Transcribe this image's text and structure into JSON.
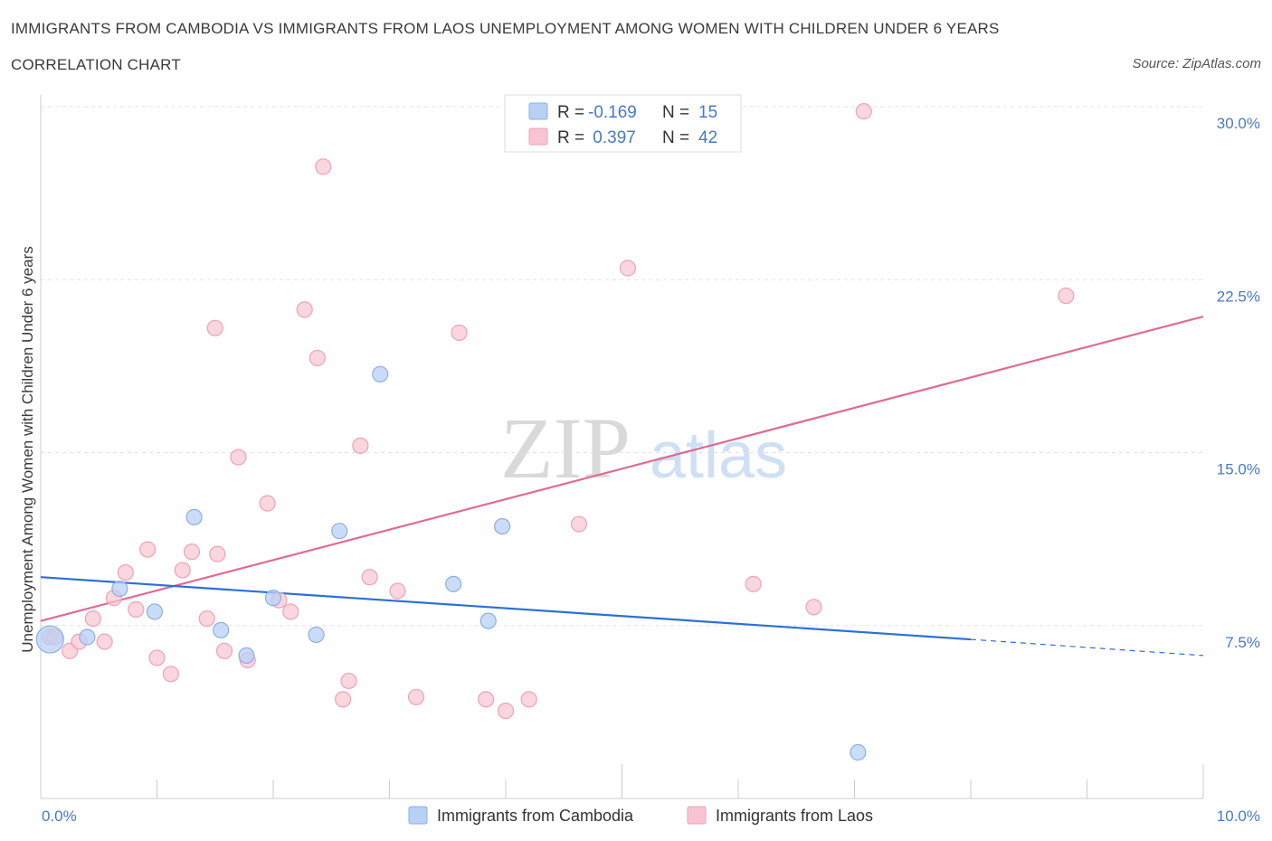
{
  "header": {
    "title": "IMMIGRANTS FROM CAMBODIA VS IMMIGRANTS FROM LAOS UNEMPLOYMENT AMONG WOMEN WITH CHILDREN UNDER 6 YEARS",
    "subtitle": "CORRELATION CHART",
    "source": "Source: ZipAtlas.com"
  },
  "colors": {
    "cambodia_fill": "#b8d0f4",
    "cambodia_stroke": "#8ab0e6",
    "cambodia_line": "#2d6fd6",
    "laos_fill": "#f8c4d2",
    "laos_stroke": "#eea2b8",
    "laos_line": "#e06a94",
    "tick_text": "#4a78c8"
  },
  "legend": {
    "rows": [
      {
        "r_label": "R =",
        "r_value": "-0.169",
        "n_label": "N =",
        "n_value": "15"
      },
      {
        "r_label": "R =",
        "r_value": " 0.397",
        "n_label": "N =",
        "n_value": "42"
      }
    ]
  },
  "watermark": {
    "zip": "ZIP",
    "atlas": "atlas"
  },
  "chart_data": {
    "type": "scatter",
    "title": "IMMIGRANTS FROM CAMBODIA VS IMMIGRANTS FROM LAOS UNEMPLOYMENT AMONG WOMEN WITH CHILDREN UNDER 6 YEARS",
    "subtitle": "CORRELATION CHART",
    "xlabel": "",
    "ylabel": "Unemployment Among Women with Children Under 6 years",
    "xlim": [
      0,
      10
    ],
    "ylim": [
      0,
      30
    ],
    "x_tick_labels": [
      "0.0%",
      "10.0%"
    ],
    "y_ticks": [
      7.5,
      15.0,
      22.5,
      30.0
    ],
    "y_tick_labels": [
      "7.5%",
      "15.0%",
      "22.5%",
      "30.0%"
    ],
    "grid": "horizontal dashed",
    "legend_placement": "bottom-center",
    "series": [
      {
        "name": "Immigrants from Cambodia",
        "R": -0.169,
        "N": 15,
        "points": [
          [
            0.08,
            6.9
          ],
          [
            0.4,
            7.0
          ],
          [
            0.68,
            9.1
          ],
          [
            0.98,
            8.1
          ],
          [
            1.32,
            12.2
          ],
          [
            1.55,
            7.3
          ],
          [
            1.77,
            6.2
          ],
          [
            2.0,
            8.7
          ],
          [
            2.37,
            7.1
          ],
          [
            2.57,
            11.6
          ],
          [
            2.92,
            18.4
          ],
          [
            3.55,
            9.3
          ],
          [
            3.85,
            7.7
          ],
          [
            3.97,
            11.8
          ],
          [
            7.03,
            2.0
          ]
        ],
        "trend": {
          "x": [
            0,
            8.0
          ],
          "y": [
            9.6,
            6.9
          ],
          "dash_to": [
            10,
            6.2
          ]
        }
      },
      {
        "name": "Immigrants from Laos",
        "R": 0.397,
        "N": 42,
        "points": [
          [
            0.08,
            7.0
          ],
          [
            0.12,
            7.0
          ],
          [
            0.25,
            6.4
          ],
          [
            0.33,
            6.8
          ],
          [
            0.45,
            7.8
          ],
          [
            0.55,
            6.8
          ],
          [
            0.63,
            8.7
          ],
          [
            0.73,
            9.8
          ],
          [
            0.82,
            8.2
          ],
          [
            0.92,
            10.8
          ],
          [
            1.0,
            6.1
          ],
          [
            1.12,
            5.4
          ],
          [
            1.22,
            9.9
          ],
          [
            1.3,
            10.7
          ],
          [
            1.43,
            7.8
          ],
          [
            1.5,
            20.4
          ],
          [
            1.52,
            10.6
          ],
          [
            1.58,
            6.4
          ],
          [
            1.7,
            14.8
          ],
          [
            1.78,
            6.0
          ],
          [
            1.95,
            12.8
          ],
          [
            2.05,
            8.6
          ],
          [
            2.15,
            8.1
          ],
          [
            2.27,
            21.2
          ],
          [
            2.38,
            19.1
          ],
          [
            2.43,
            27.4
          ],
          [
            2.6,
            4.3
          ],
          [
            2.65,
            5.1
          ],
          [
            2.75,
            15.3
          ],
          [
            2.83,
            9.6
          ],
          [
            3.07,
            9.0
          ],
          [
            3.23,
            4.4
          ],
          [
            3.6,
            20.2
          ],
          [
            3.83,
            4.3
          ],
          [
            4.0,
            3.8
          ],
          [
            4.2,
            4.3
          ],
          [
            4.63,
            11.9
          ],
          [
            5.05,
            23.0
          ],
          [
            6.13,
            9.3
          ],
          [
            6.65,
            8.3
          ],
          [
            7.08,
            29.8
          ],
          [
            8.82,
            21.8
          ]
        ],
        "trend": {
          "x": [
            0,
            10
          ],
          "y": [
            7.7,
            20.9
          ]
        }
      }
    ]
  }
}
